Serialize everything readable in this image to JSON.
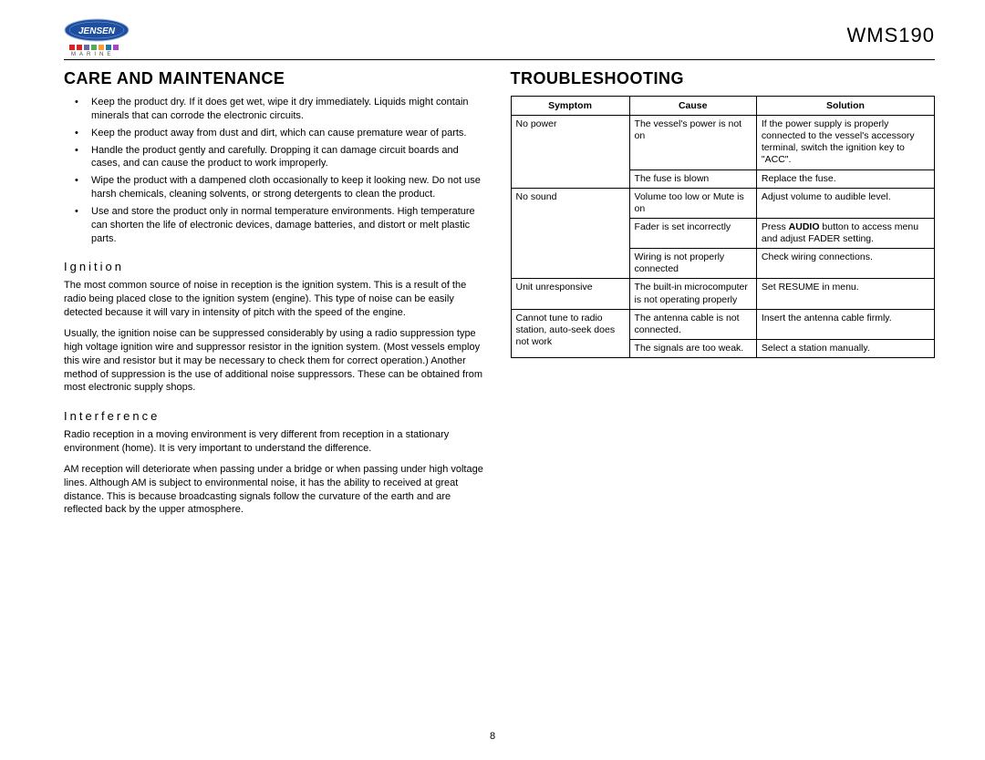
{
  "header": {
    "brand": "JENSEN",
    "subbrand": "MARINE",
    "model": "WMS190",
    "logo_colors": [
      "#d22",
      "#d22",
      "#66a",
      "#5a5",
      "#f93",
      "#27a",
      "#a4c"
    ],
    "logo_bg": "#1e4ea0",
    "logo_inner": "#ffffff",
    "logo_border": "#b0c4de"
  },
  "left": {
    "title": "CARE AND MAINTENANCE",
    "bullets": [
      "Keep the product dry. If it does get wet, wipe it dry immediately. Liquids might contain minerals that can corrode the electronic circuits.",
      "Keep the product away from dust and dirt, which can cause premature wear of parts.",
      "Handle the product gently and carefully. Dropping it can damage circuit boards and cases, and can cause the product to work improperly.",
      "Wipe the product with a dampened cloth occasionally to keep it looking new. Do not use harsh chemicals, cleaning solvents, or strong detergents to clean the product.",
      "Use and store the product only in normal temperature environments. High temperature can shorten the life of electronic devices, damage batteries, and distort or melt plastic parts."
    ],
    "sub1": "Ignition",
    "p1a": "The most common source of noise in reception is the ignition system. This is a result of the radio being placed close to the ignition system (engine). This type of noise can be easily detected because it will vary in intensity of pitch with the speed of the engine.",
    "p1b": "Usually, the ignition noise can be suppressed considerably by using a radio suppression type high voltage ignition wire and suppressor resistor in the ignition system. (Most vessels employ this wire and resistor but it may be necessary to check them for correct operation.) Another method of suppression is the use of additional noise suppressors. These can be obtained from most electronic supply shops.",
    "sub2": "Interference",
    "p2a": "Radio reception in a moving environment is very different from reception in a stationary environment (home). It is very important to understand the difference.",
    "p2b": "AM reception will deteriorate when passing under a bridge or when passing under high voltage lines. Although AM is subject to environmental noise, it has the ability to received at great distance. This is because broadcasting signals follow the curvature of the earth and are reflected back by the upper atmosphere."
  },
  "right": {
    "title": "TROUBLESHOOTING",
    "headers": [
      "Symptom",
      "Cause",
      "Solution"
    ],
    "col_widths": [
      "28%",
      "30%",
      "42%"
    ],
    "rows": [
      {
        "s": "No power",
        "srows": 2,
        "c": "The vessel's power is not on",
        "x": "If the power supply is properly connected to the vessel's accessory terminal, switch the ignition key to \"ACC\"."
      },
      {
        "s": "",
        "srows": 0,
        "c": "The fuse is blown",
        "x": "Replace the fuse."
      },
      {
        "s": "No sound",
        "srows": 3,
        "c": "Volume too low or Mute is on",
        "x": "Adjust volume to audible level."
      },
      {
        "s": "",
        "srows": 0,
        "c": "Fader is set incorrectly",
        "x_html": "Press <b>AUDIO</b> button to access menu and adjust FADER setting."
      },
      {
        "s": "",
        "srows": 0,
        "c": "Wiring is not properly connected",
        "x": "Check wiring connections."
      },
      {
        "s": "Unit unresponsive",
        "srows": 1,
        "c": "The built-in microcomputer is not operating properly",
        "x": "Set RESUME in menu."
      },
      {
        "s": "Cannot tune to radio station, auto-seek does not work",
        "srows": 2,
        "c": "The antenna cable is not connected.",
        "x": "Insert the antenna cable firmly."
      },
      {
        "s": "",
        "srows": 0,
        "c": "The signals are too weak.",
        "x": "Select a station manually."
      }
    ]
  },
  "page": "8"
}
